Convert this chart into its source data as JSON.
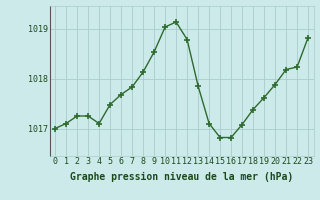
{
  "x": [
    0,
    1,
    2,
    3,
    4,
    5,
    6,
    7,
    8,
    9,
    10,
    11,
    12,
    13,
    14,
    15,
    16,
    17,
    18,
    19,
    20,
    21,
    22,
    23
  ],
  "y": [
    1017.0,
    1017.1,
    1017.25,
    1017.25,
    1017.1,
    1017.48,
    1017.68,
    1017.83,
    1018.13,
    1018.53,
    1019.03,
    1019.13,
    1018.78,
    1017.85,
    1017.1,
    1016.82,
    1016.82,
    1017.08,
    1017.38,
    1017.62,
    1017.88,
    1018.18,
    1018.23,
    1018.82
  ],
  "line_color": "#2d6a2d",
  "marker": "+",
  "marker_size": 4,
  "marker_lw": 1.2,
  "bg_color": "#cdeaea",
  "grid_color": "#aacccc",
  "ylabel_ticks": [
    1017,
    1018,
    1019
  ],
  "xlabel_label": "Graphe pression niveau de la mer (hPa)",
  "ylim": [
    1016.45,
    1019.45
  ],
  "xlim": [
    -0.5,
    23.5
  ],
  "label_color": "#1a4a1a",
  "xlabel_fontsize": 7.0,
  "tick_fontsize": 6.0,
  "line_width": 1.0
}
